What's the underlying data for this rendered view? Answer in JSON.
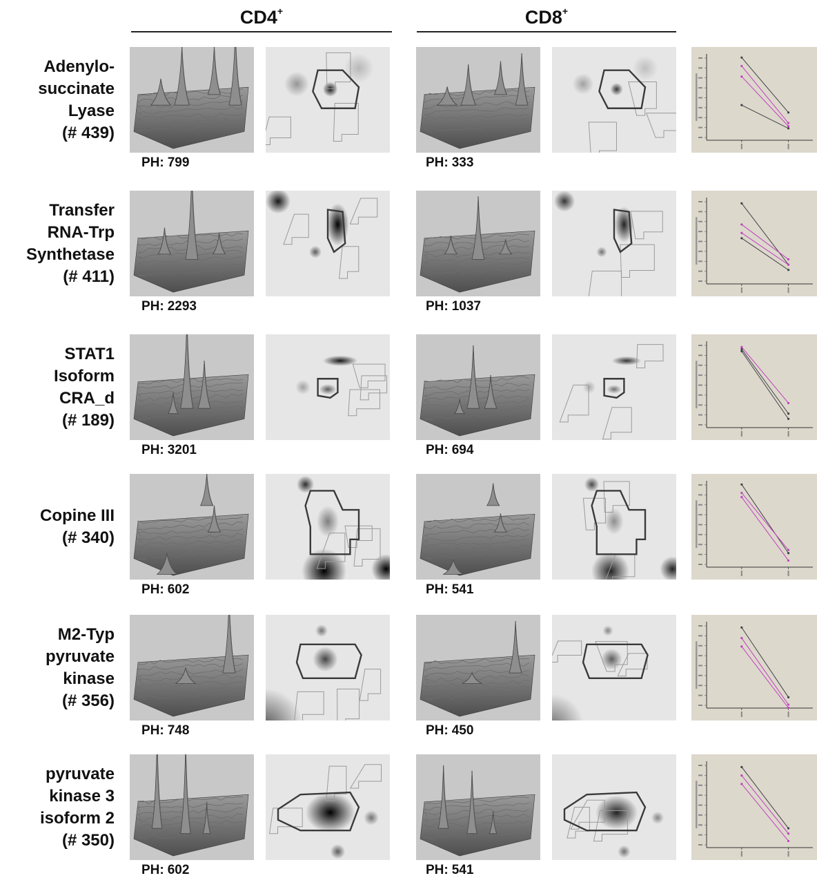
{
  "columns": [
    {
      "name": "CD4",
      "superscript": "+"
    },
    {
      "name": "CD8",
      "superscript": "+"
    }
  ],
  "ph_label": "PH:",
  "rows": [
    {
      "label": [
        "Adenylo-",
        "succinate",
        "Lyase",
        "(# 439)"
      ],
      "ph": [
        "799",
        "333"
      ]
    },
    {
      "label": [
        "Transfer",
        "RNA-Trp",
        "Synthetase",
        "(# 411)"
      ],
      "ph": [
        "2293",
        "1037"
      ]
    },
    {
      "label": [
        "STAT1",
        "Isoform",
        "CRA_d",
        "(# 189)"
      ],
      "ph": [
        "3201",
        "694"
      ]
    },
    {
      "label": [
        "Copine III",
        "(# 340)"
      ],
      "ph": [
        "602",
        "541"
      ]
    },
    {
      "label": [
        "M2-Typ",
        "pyruvate",
        "kinase",
        "(# 356)"
      ],
      "ph": [
        "748",
        "450"
      ]
    },
    {
      "label": [
        "pyruvate",
        "kinase 3",
        "isoform 2",
        "(# 350)"
      ],
      "ph": [
        "602",
        "541"
      ]
    }
  ],
  "colors": {
    "surface_bg": "#c8c8c8",
    "gel_bg": "#e6e6e6",
    "plot_bg": "#ddd8cc",
    "line_purple": "#c040c0",
    "line_dark": "#404048"
  }
}
